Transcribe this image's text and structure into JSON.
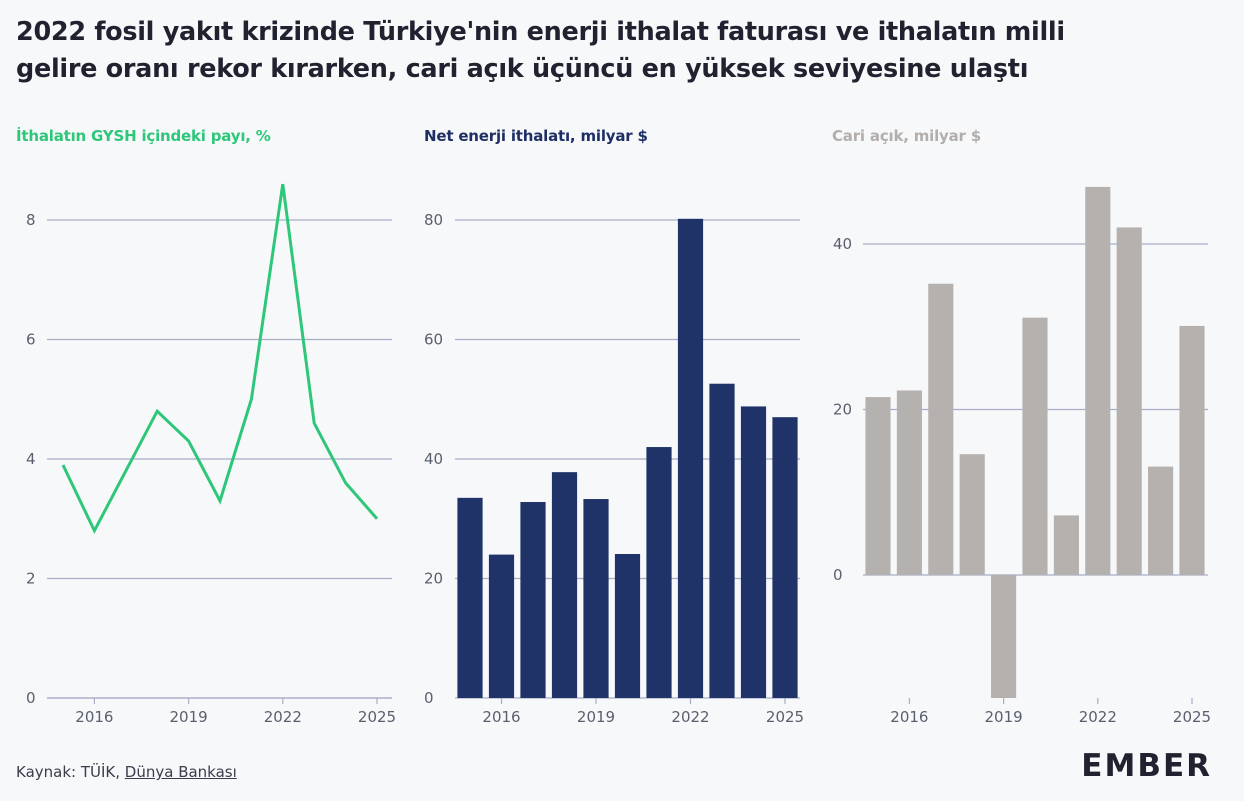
{
  "title": {
    "line1": "2022 fosil yakıt krizinde Türkiye'nin enerji ithalat faturası ve ithalatın milli",
    "line2": "gelire oranı rekor kırarken, cari açık üçüncü en yüksek seviyesine ulaştı"
  },
  "footer": {
    "source_prefix": "Kaynak: TÜİK, ",
    "source_link": "Dünya Bankası",
    "logo": "EMBER"
  },
  "colors": {
    "line": "#2ec77a",
    "bar_energy": "#1f3368",
    "bar_deficit": "#b5b1ae",
    "grid": "#a9adc6"
  },
  "chart_data": [
    {
      "type": "line",
      "title": "İthalatın GYSH içindeki payı, %",
      "x": [
        2015,
        2016,
        2017,
        2018,
        2019,
        2020,
        2021,
        2022,
        2023,
        2024,
        2025
      ],
      "values": [
        3.9,
        2.8,
        3.8,
        4.8,
        4.3,
        3.3,
        5.0,
        8.6,
        4.6,
        3.6,
        3.0
      ],
      "ylim": [
        0,
        8.6
      ],
      "yticks": [
        0,
        2,
        4,
        6,
        8
      ],
      "xticks": [
        2016,
        2019,
        2022,
        2025
      ],
      "grid": true
    },
    {
      "type": "bar",
      "title": "Net enerji ithalatı, milyar $",
      "x": [
        2015,
        2016,
        2017,
        2018,
        2019,
        2020,
        2021,
        2022,
        2023,
        2024,
        2025
      ],
      "values": [
        33.5,
        24,
        32.8,
        37.8,
        33.3,
        24.1,
        42,
        80.2,
        52.6,
        48.8,
        47
      ],
      "ylim": [
        0,
        80
      ],
      "yticks": [
        0,
        20,
        40,
        60,
        80
      ],
      "xticks": [
        2016,
        2019,
        2022,
        2025
      ],
      "grid": true
    },
    {
      "type": "bar",
      "title": "Cari açık, milyar $",
      "x": [
        2015,
        2016,
        2017,
        2018,
        2019,
        2020,
        2021,
        2022,
        2023,
        2024,
        2025
      ],
      "values": [
        21.5,
        22.3,
        35.2,
        14.6,
        -15,
        31.1,
        7.2,
        46.9,
        42,
        13.1,
        30.1
      ],
      "ylim": [
        -15,
        40
      ],
      "yticks": [
        0,
        20,
        40
      ],
      "xticks": [
        2016,
        2019,
        2022,
        2025
      ],
      "grid": true
    }
  ]
}
